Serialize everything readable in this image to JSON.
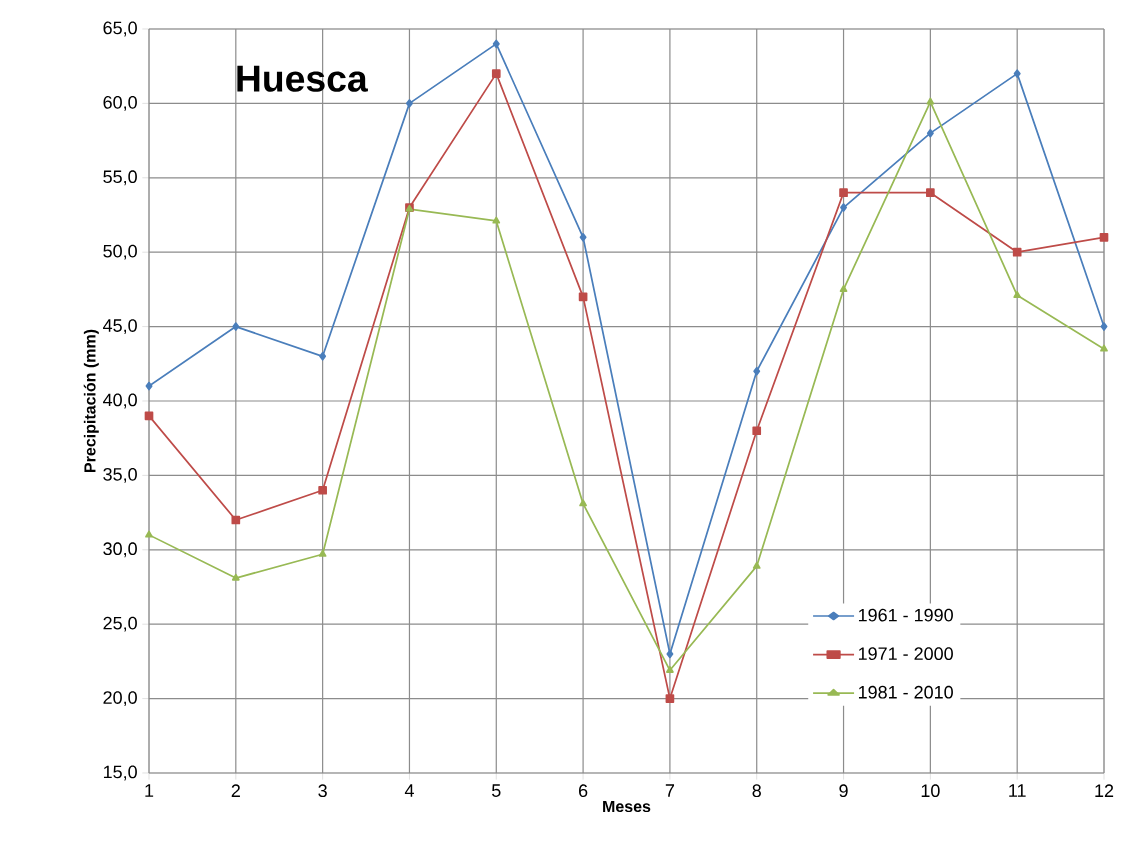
{
  "chart_data": {
    "type": "line",
    "title": "Huesca",
    "xlabel": "Meses",
    "ylabel": "Precipitación (mm)",
    "x": [
      1,
      2,
      3,
      4,
      5,
      6,
      7,
      8,
      9,
      10,
      11,
      12
    ],
    "series": [
      {
        "name": "1961 - 1990",
        "color": "#4a7ebb",
        "marker": "diamond",
        "values": [
          41,
          45,
          43,
          60,
          64,
          51,
          23,
          42,
          53,
          58,
          62,
          45
        ]
      },
      {
        "name": "1971 - 2000",
        "color": "#be4b48",
        "marker": "square",
        "values": [
          39,
          32,
          34,
          53,
          62,
          47,
          20,
          38,
          54,
          54,
          50,
          51
        ]
      },
      {
        "name": "1981 - 2010",
        "color": "#98b954",
        "marker": "triangle",
        "values": [
          31.0,
          28.1,
          29.7,
          52.9,
          52.1,
          33.1,
          21.9,
          28.9,
          47.5,
          60.1,
          47.1,
          43.5
        ]
      }
    ],
    "xlim": [
      1,
      12
    ],
    "xticks": [
      1,
      2,
      3,
      4,
      5,
      6,
      7,
      8,
      9,
      10,
      11,
      12
    ],
    "ylim": [
      15,
      65
    ],
    "yticks": [
      {
        "value": 15,
        "label": "15,0"
      },
      {
        "value": 20,
        "label": "20,0"
      },
      {
        "value": 25,
        "label": "25,0"
      },
      {
        "value": 30,
        "label": "30,0"
      },
      {
        "value": 35,
        "label": "35,0"
      },
      {
        "value": 40,
        "label": "40,0"
      },
      {
        "value": 45,
        "label": "45,0"
      },
      {
        "value": 50,
        "label": "50,0"
      },
      {
        "value": 55,
        "label": "55,0"
      },
      {
        "value": 60,
        "label": "60,0"
      },
      {
        "value": 65,
        "label": "65,0"
      }
    ],
    "grid": true,
    "legend": "bottom right",
    "line_style": "solid"
  }
}
